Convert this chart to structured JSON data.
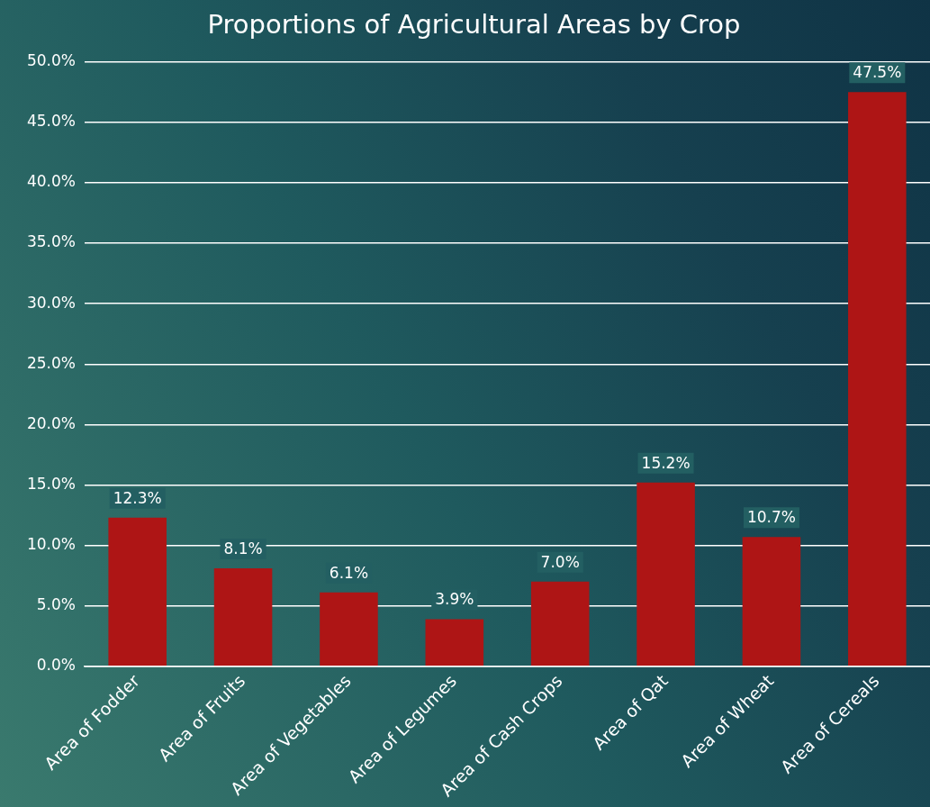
{
  "chart_data": {
    "type": "bar",
    "title": "Proportions of Agricultural Areas by Crop",
    "categories": [
      "Area of Fodder",
      "Area of Fruits",
      "Area of Vegetables",
      "Area of Legumes",
      "Area of Cash Crops",
      "Area of Qat",
      "Area of Wheat",
      "Area of Cereals"
    ],
    "values": [
      12.3,
      8.1,
      6.1,
      3.9,
      7.0,
      15.2,
      10.7,
      47.5
    ],
    "value_labels": [
      "12.3%",
      "8.1%",
      "6.1%",
      "3.9%",
      "7.0%",
      "15.2%",
      "10.7%",
      "47.5%"
    ],
    "color": "#ae1515",
    "ylim": [
      0,
      50
    ],
    "yticks": [
      {
        "value": 0,
        "label": "0.0%"
      },
      {
        "value": 5,
        "label": "5.0%"
      },
      {
        "value": 10,
        "label": "10.0%"
      },
      {
        "value": 15,
        "label": "15.0%"
      },
      {
        "value": 20,
        "label": "20.0%"
      },
      {
        "value": 25,
        "label": "25.0%"
      },
      {
        "value": 30,
        "label": "30.0%"
      },
      {
        "value": 35,
        "label": "35.0%"
      },
      {
        "value": 40,
        "label": "40.0%"
      },
      {
        "value": 45,
        "label": "45.0%"
      },
      {
        "value": 50,
        "label": "50.0%"
      }
    ],
    "grid": "y",
    "legend": false
  }
}
